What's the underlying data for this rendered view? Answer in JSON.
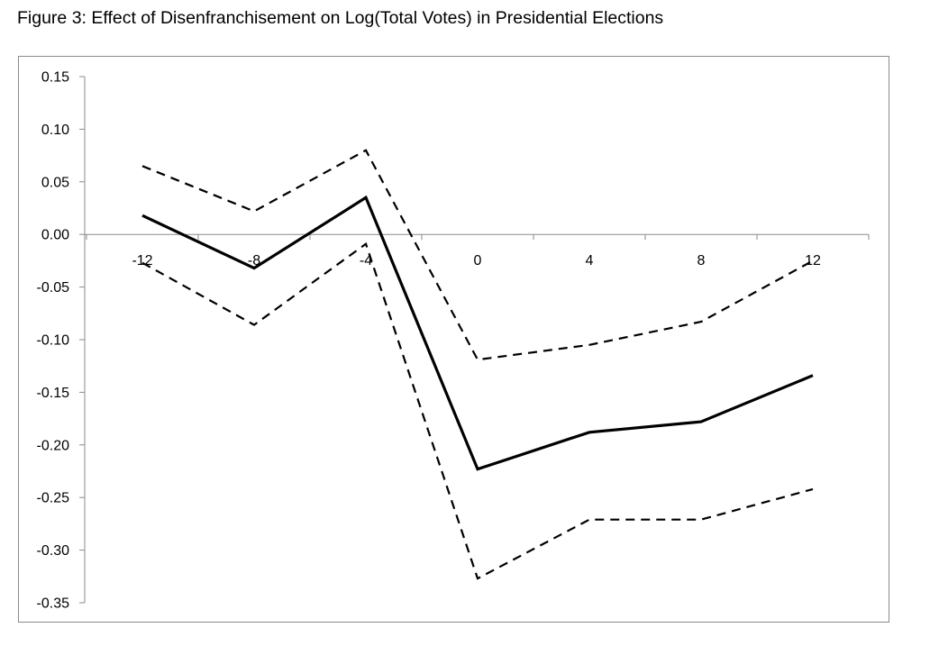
{
  "figure": {
    "title": "Figure 3: Effect of Disenfranchisement on Log(Total Votes) in Presidential Elections"
  },
  "chart_data": {
    "type": "line",
    "title": "Figure 3: Effect of Disenfranchisement on Log(Total Votes) in Presidential Elections",
    "xlabel": "",
    "ylabel": "",
    "x": [
      -12,
      -8,
      -4,
      0,
      4,
      8,
      12
    ],
    "x_tick_labels": [
      "-12",
      "-8",
      "-4",
      "0",
      "4",
      "8",
      "12"
    ],
    "y_tick_values": [
      0.15,
      0.1,
      0.05,
      0.0,
      -0.05,
      -0.1,
      -0.15,
      -0.2,
      -0.25,
      -0.3,
      -0.35
    ],
    "y_tick_labels": [
      "0.15",
      "0.10",
      "0.05",
      "0.00",
      "-0.05",
      "-0.10",
      "-0.15",
      "-0.20",
      "-0.25",
      "-0.30",
      "-0.35"
    ],
    "ylim": [
      -0.35,
      0.15
    ],
    "grid": false,
    "legend": "none",
    "series": [
      {
        "style": "solid",
        "color": "#000000",
        "values": [
          0.018,
          -0.032,
          0.035,
          -0.223,
          -0.188,
          -0.178,
          -0.134
        ]
      },
      {
        "style": "dashed",
        "color": "#000000",
        "values": [
          0.065,
          0.022,
          0.08,
          -0.119,
          -0.105,
          -0.083,
          -0.025
        ]
      },
      {
        "style": "dashed",
        "color": "#000000",
        "values": [
          -0.027,
          -0.086,
          -0.009,
          -0.327,
          -0.271,
          -0.271,
          -0.242
        ]
      }
    ]
  }
}
